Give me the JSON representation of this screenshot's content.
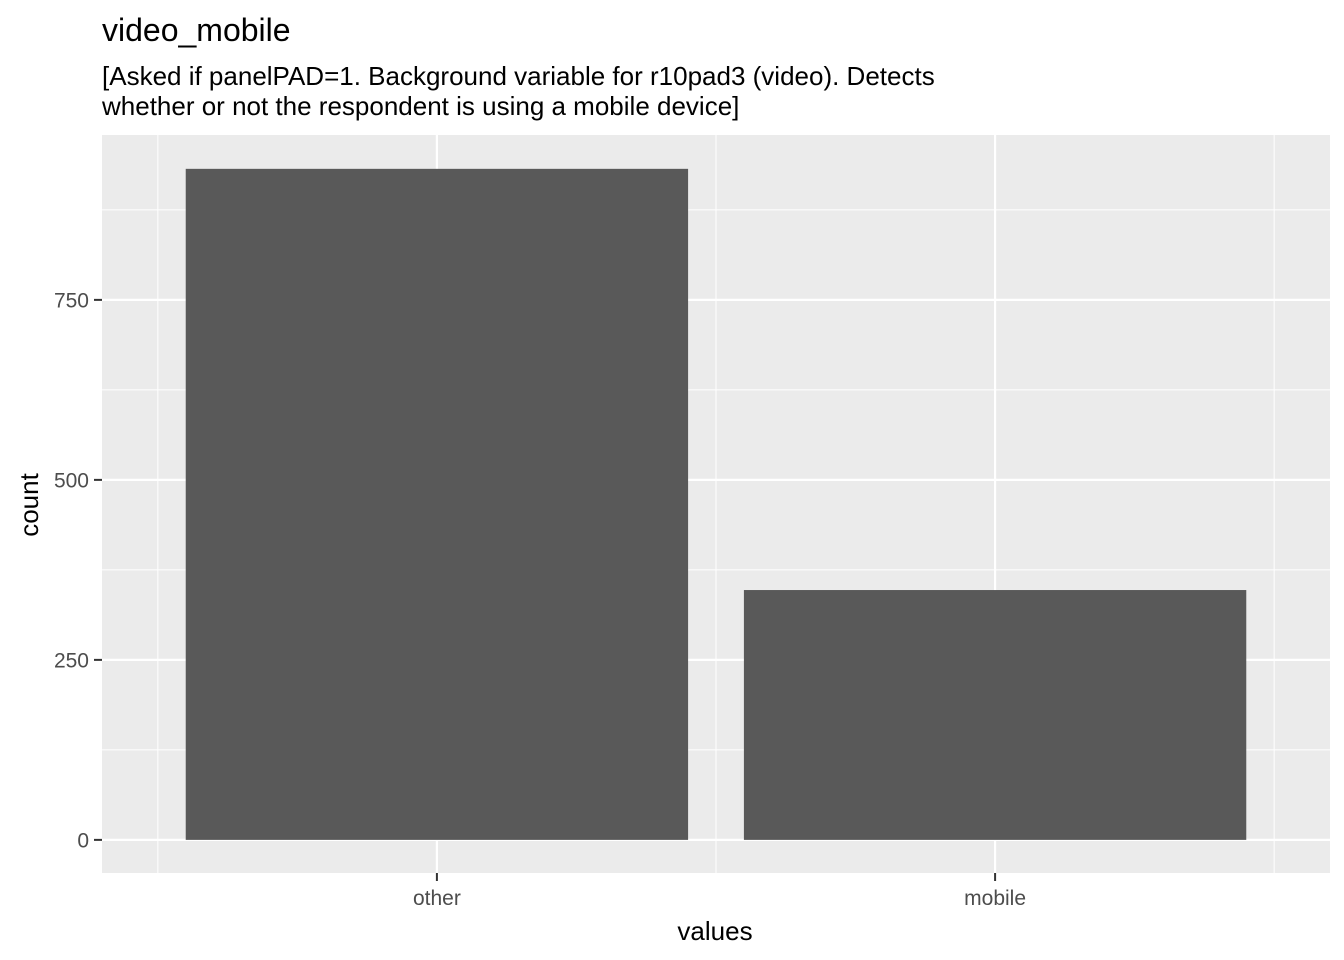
{
  "chart_data": {
    "type": "bar",
    "title": "video_mobile",
    "subtitle_lines": [
      "[Asked if panelPAD=1. Background variable for r10pad3 (video). Detects",
      "whether or not the respondent is using a mobile device]"
    ],
    "categories": [
      "other",
      "mobile"
    ],
    "values": [
      932,
      347
    ],
    "xlabel": "values",
    "ylabel": "count",
    "yticks": [
      0,
      250,
      500,
      750
    ],
    "ylim": [
      -46,
      979
    ],
    "grid": true,
    "colors": {
      "panel": "#ebebeb",
      "grid": "#ffffff",
      "bar": "#595959",
      "tick": "#333333"
    }
  }
}
